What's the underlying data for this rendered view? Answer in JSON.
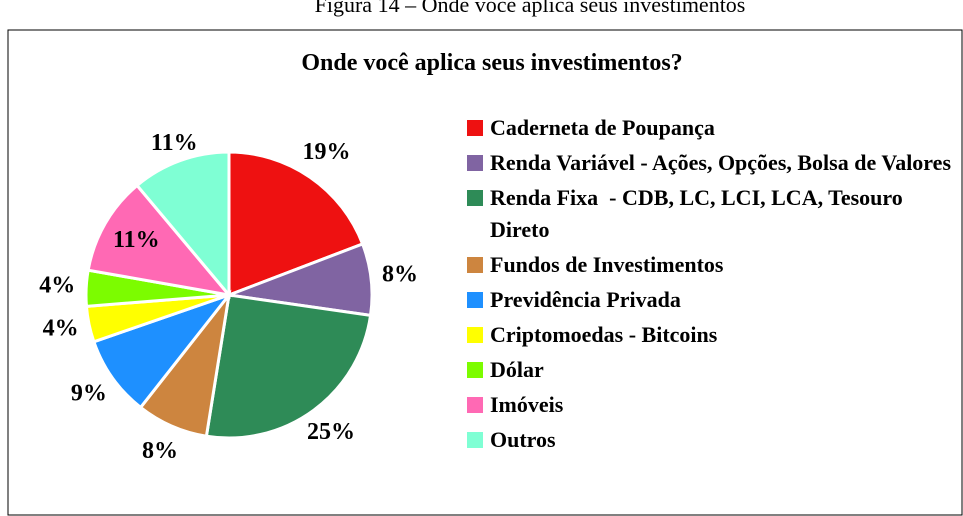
{
  "caption": "Figura 14 – Onde você aplica seus investimentos",
  "chart_data": {
    "type": "pie",
    "title": "Onde você aplica seus investimentos?",
    "categories": [
      "Caderneta de Poupança",
      "Renda Variável - Ações, Opções, Bolsa de Valores",
      "Renda Fixa  - CDB, LC, LCI, LCA, Tesouro Direto",
      "Fundos de Investimentos",
      "Previdência Privada",
      "Criptomoedas - Bitcoins",
      "Dólar",
      "Imóveis",
      "Outros"
    ],
    "values": [
      19,
      8,
      25,
      8,
      9,
      4,
      4,
      11,
      11
    ],
    "value_labels": [
      "19%",
      "8%",
      "25%",
      "8%",
      "9%",
      "4%",
      "4%",
      "11%",
      "11%"
    ],
    "colors": [
      "#ee1111",
      "#8064a2",
      "#2e8b57",
      "#cd853f",
      "#1e90ff",
      "#ffff00",
      "#7cfc00",
      "#ff69b4",
      "#7fffd4"
    ],
    "legend": "right"
  }
}
